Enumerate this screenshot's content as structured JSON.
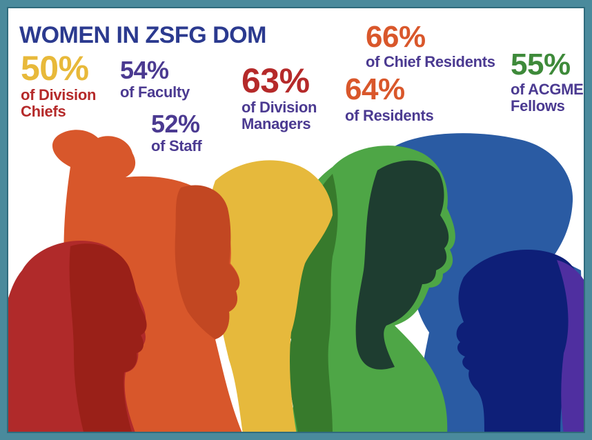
{
  "title": "WOMEN IN ZSFG DOM",
  "stats": {
    "division_chiefs": {
      "value": "50%",
      "label": "of Division\nChiefs"
    },
    "faculty": {
      "value": "54%",
      "label": "of Faculty"
    },
    "staff": {
      "value": "52%",
      "label": "of Staff"
    },
    "division_managers": {
      "value": "63%",
      "label": "of Division\nManagers"
    },
    "chief_residents": {
      "value": "66%",
      "label": "of Chief Residents"
    },
    "residents": {
      "value": "64%",
      "label": "of Residents"
    },
    "acgme_fellows": {
      "value": "55%",
      "label": "of ACGME\nFellows"
    }
  },
  "colors": {
    "frame": "#4a8a9c",
    "title": "#2b3a8f",
    "yellow": "#e8b93a",
    "purple": "#4b3a91",
    "dark_red": "#b52a2a",
    "orange": "#d9572b",
    "green": "#3e8a3a",
    "silhouette_colors": [
      "#b02a2a",
      "#9a2018",
      "#d8572b",
      "#c04522",
      "#e6b93c",
      "#4ea646",
      "#37751f",
      "#1f3f33",
      "#2a5ba3",
      "#0e1f78",
      "#4f2fa0"
    ]
  }
}
